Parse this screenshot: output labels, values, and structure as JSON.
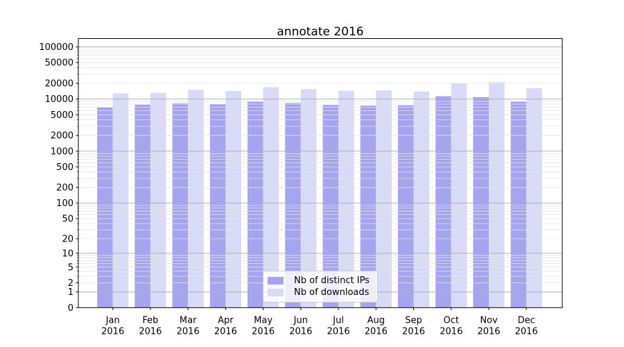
{
  "title": "annotate 2016",
  "chart_data": {
    "type": "bar",
    "title": "annotate 2016",
    "x_year": "2016",
    "categories": [
      "Jan",
      "Feb",
      "Mar",
      "Apr",
      "May",
      "Jun",
      "Jul",
      "Aug",
      "Sep",
      "Oct",
      "Nov",
      "Dec"
    ],
    "series": [
      {
        "name": "Nb of distinct IPs",
        "color": "#a5a5ef",
        "values": [
          6900,
          7800,
          8300,
          8000,
          9100,
          8400,
          7700,
          7500,
          7600,
          11300,
          10900,
          8900
        ]
      },
      {
        "name": "Nb of downloads",
        "color": "#d9d9f8",
        "values": [
          12800,
          13200,
          15100,
          14300,
          16900,
          15600,
          14400,
          14600,
          14000,
          20000,
          21100,
          16100
        ]
      }
    ],
    "yscale": "log1p",
    "yticks": [
      0,
      1,
      2,
      5,
      10,
      20,
      50,
      100,
      200,
      500,
      1000,
      2000,
      5000,
      10000,
      20000,
      50000,
      100000
    ],
    "ylim": [
      0,
      147000
    ],
    "grid": "major-and-minor, drawn above bars",
    "legend_position": "lower center"
  },
  "legend": {
    "items": [
      {
        "label": "Nb of distinct IPs",
        "color": "#a5a5ef"
      },
      {
        "label": "Nb of downloads",
        "color": "#d9d9f8"
      }
    ]
  },
  "colors": {
    "grid_major": "#b0b0b0",
    "grid_minor": "#e4e4e4",
    "spine": "#000000",
    "background": "#ffffff",
    "text": "#000000"
  }
}
